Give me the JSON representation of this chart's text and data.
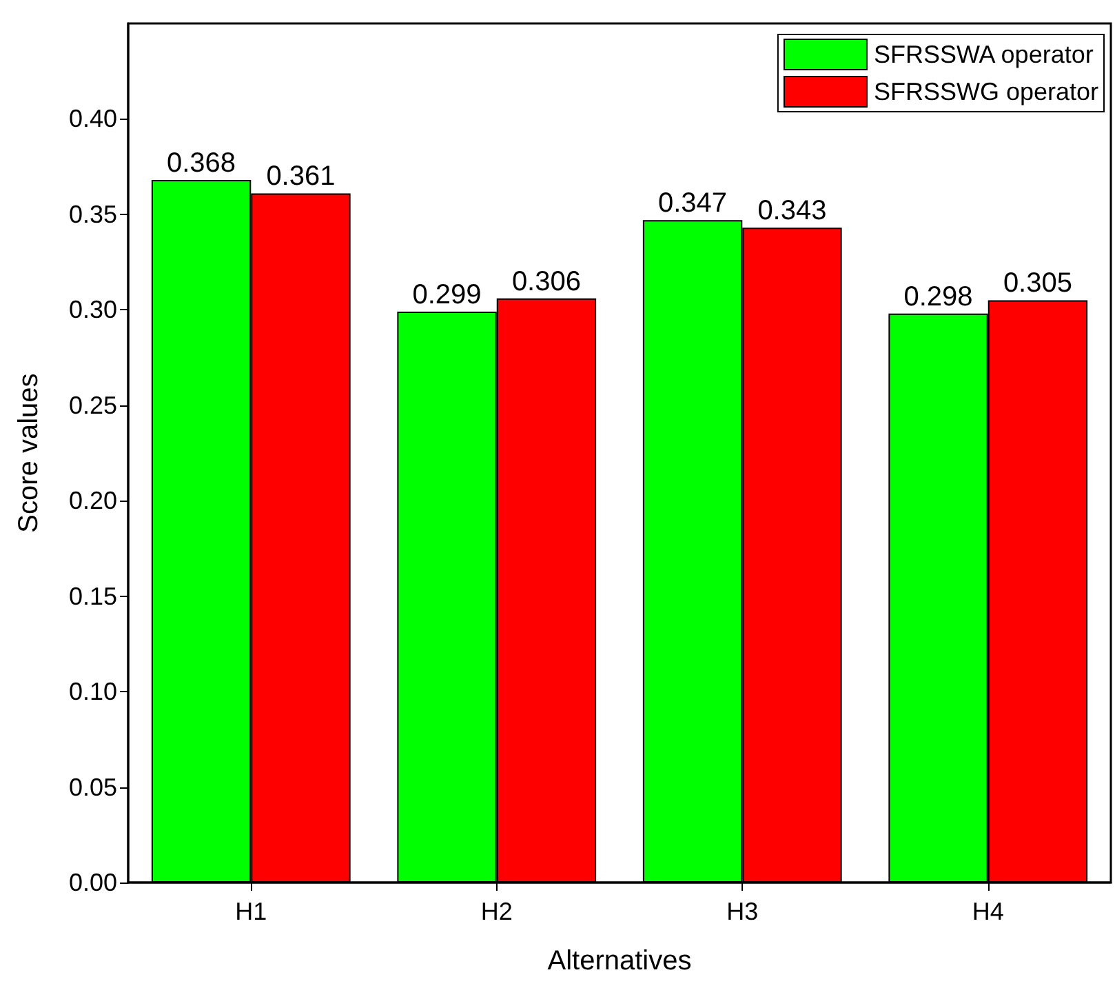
{
  "chart_data": {
    "type": "bar",
    "xlabel": "Alternatives",
    "ylabel": "Score values",
    "categories": [
      "H1",
      "H2",
      "H3",
      "H4"
    ],
    "series": [
      {
        "name": "SFRSSWA operator",
        "color": "#00ff00",
        "values": [
          0.368,
          0.299,
          0.347,
          0.298
        ]
      },
      {
        "name": "SFRSSWG operator",
        "color": "#ff0000",
        "values": [
          0.361,
          0.306,
          0.343,
          0.305
        ]
      }
    ],
    "ylim": [
      0,
      0.45
    ],
    "yticks": [
      {
        "value": 0,
        "label": "0.00"
      },
      {
        "value": 0.05,
        "label": "0.05"
      },
      {
        "value": 0.1,
        "label": "0.10"
      },
      {
        "value": 0.15,
        "label": "0.15"
      },
      {
        "value": 0.2,
        "label": "0.20"
      },
      {
        "value": 0.25,
        "label": "0.25"
      },
      {
        "value": 0.3,
        "label": "0.30"
      },
      {
        "value": 0.35,
        "label": "0.35"
      },
      {
        "value": 0.4,
        "label": "0.40"
      }
    ],
    "data_labels": true,
    "legend": "top right",
    "grid": false
  }
}
